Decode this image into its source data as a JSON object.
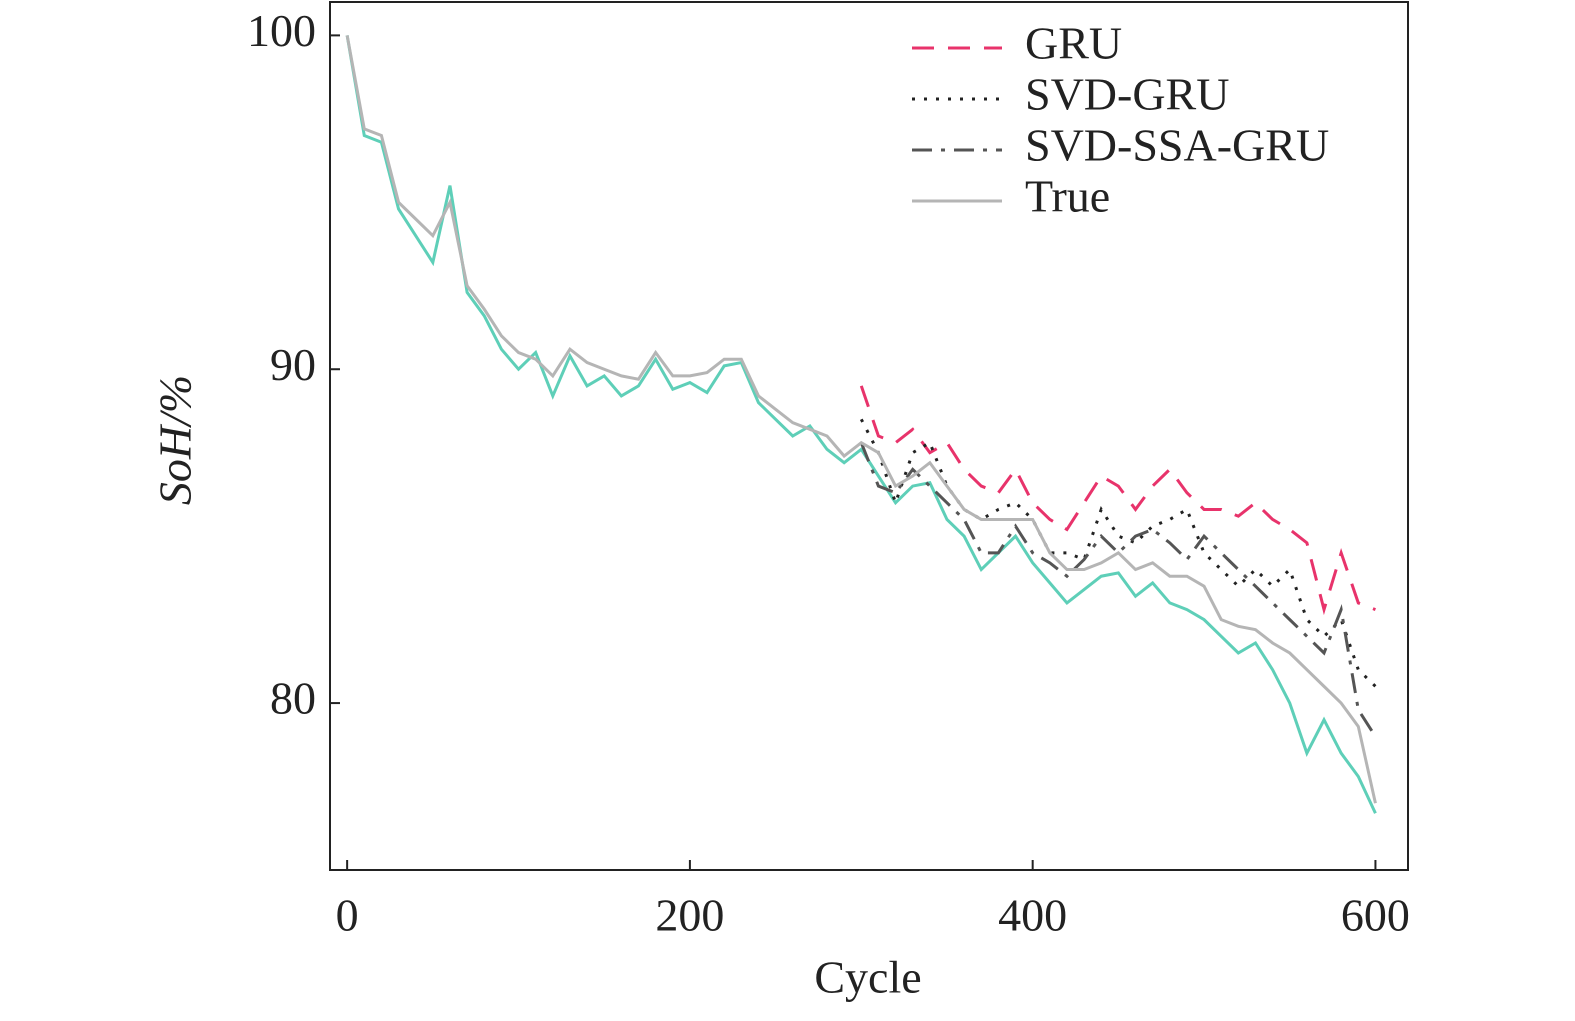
{
  "chart_data": {
    "type": "line",
    "x_label": "Cycle",
    "y_label": "SoH/%",
    "xlim": [
      -10,
      619
    ],
    "ylim": [
      75,
      101
    ],
    "xticks": [
      0,
      200,
      400,
      600
    ],
    "yticks": [
      80,
      90,
      100
    ],
    "legend": "upper right",
    "x": [
      0,
      10,
      20,
      30,
      40,
      50,
      60,
      70,
      80,
      90,
      100,
      110,
      120,
      130,
      140,
      150,
      160,
      170,
      180,
      190,
      200,
      210,
      220,
      230,
      240,
      250,
      260,
      270,
      280,
      290,
      300,
      310,
      320,
      330,
      340,
      350,
      360,
      370,
      380,
      390,
      400,
      410,
      420,
      430,
      440,
      450,
      460,
      470,
      480,
      490,
      500,
      510,
      520,
      530,
      540,
      550,
      560,
      570,
      580,
      590,
      600
    ],
    "series": [
      {
        "color": "#5ecfb8",
        "style": "solid",
        "values": [
          100,
          97.0,
          96.8,
          94.8,
          94.0,
          93.2,
          95.5,
          92.3,
          91.6,
          90.6,
          90.0,
          90.5,
          89.2,
          90.4,
          89.5,
          89.8,
          89.2,
          89.5,
          90.3,
          89.4,
          89.6,
          89.3,
          90.1,
          90.2,
          89.0,
          88.5,
          88.0,
          88.3,
          87.6,
          87.2,
          87.6,
          86.8,
          86.0,
          86.5,
          86.6,
          85.5,
          85.0,
          84.0,
          84.5,
          85.0,
          84.2,
          83.6,
          83.0,
          83.4,
          83.8,
          83.9,
          83.2,
          83.6,
          83.0,
          82.8,
          82.5,
          82.0,
          81.5,
          81.8,
          81.0,
          80.0,
          78.5,
          79.5,
          78.5,
          77.8,
          76.7
        ]
      },
      {
        "name": "GRU",
        "color": "#e8336b",
        "style": "dashed",
        "values": [
          null,
          null,
          null,
          null,
          null,
          null,
          null,
          null,
          null,
          null,
          null,
          null,
          null,
          null,
          null,
          null,
          null,
          null,
          null,
          null,
          null,
          null,
          null,
          null,
          null,
          null,
          null,
          null,
          null,
          null,
          89.5,
          88.0,
          87.8,
          88.2,
          87.5,
          87.8,
          87.0,
          86.5,
          86.3,
          87.0,
          86.0,
          85.5,
          85.2,
          86.0,
          86.8,
          86.5,
          85.8,
          86.5,
          87.0,
          86.3,
          85.8,
          85.8,
          85.6,
          86.0,
          85.5,
          85.2,
          84.8,
          82.8,
          84.5,
          83.0,
          82.8
        ]
      },
      {
        "name": "SVD-GRU",
        "color": "#222222",
        "style": "dotted",
        "values": [
          null,
          null,
          null,
          null,
          null,
          null,
          null,
          null,
          null,
          null,
          null,
          null,
          null,
          null,
          null,
          null,
          null,
          null,
          null,
          null,
          null,
          null,
          null,
          null,
          null,
          null,
          null,
          null,
          null,
          null,
          88.5,
          87.5,
          86.0,
          87.5,
          87.8,
          86.5,
          85.8,
          85.5,
          85.8,
          86.0,
          85.5,
          84.5,
          84.5,
          84.3,
          85.8,
          85.0,
          84.8,
          85.3,
          85.5,
          85.8,
          84.5,
          84.0,
          83.5,
          84.0,
          83.5,
          84.0,
          82.5,
          82.0,
          82.5,
          81.0,
          80.5
        ]
      },
      {
        "name": "SVD-SSA-GRU",
        "color": "#555555",
        "style": "dashdot",
        "values": [
          null,
          null,
          null,
          null,
          null,
          null,
          null,
          null,
          null,
          null,
          null,
          null,
          null,
          null,
          null,
          null,
          null,
          null,
          null,
          null,
          null,
          null,
          null,
          null,
          null,
          null,
          null,
          null,
          null,
          null,
          87.8,
          86.5,
          86.3,
          87.0,
          86.5,
          86.0,
          85.5,
          84.5,
          84.5,
          85.3,
          84.5,
          84.2,
          83.8,
          84.3,
          85.0,
          84.5,
          85.0,
          85.2,
          84.8,
          84.3,
          85.0,
          84.5,
          84.0,
          83.5,
          83.0,
          82.5,
          82.0,
          81.5,
          82.8,
          79.8,
          79.0
        ]
      },
      {
        "name": "True",
        "color": "#b5b5b5",
        "style": "solid",
        "values": [
          100,
          97.2,
          97.0,
          95.0,
          94.5,
          94.0,
          95.0,
          92.5,
          91.8,
          91.0,
          90.5,
          90.3,
          89.8,
          90.6,
          90.2,
          90.0,
          89.8,
          89.7,
          90.5,
          89.8,
          89.8,
          89.9,
          90.3,
          90.3,
          89.2,
          88.8,
          88.4,
          88.2,
          88.0,
          87.4,
          87.8,
          87.5,
          86.5,
          86.8,
          87.2,
          86.5,
          85.8,
          85.5,
          85.5,
          85.5,
          85.5,
          84.5,
          84.0,
          84.0,
          84.2,
          84.5,
          84.0,
          84.2,
          83.8,
          83.8,
          83.5,
          82.5,
          82.3,
          82.2,
          81.8,
          81.5,
          81.0,
          80.5,
          80.0,
          79.3,
          77.0
        ]
      }
    ]
  }
}
